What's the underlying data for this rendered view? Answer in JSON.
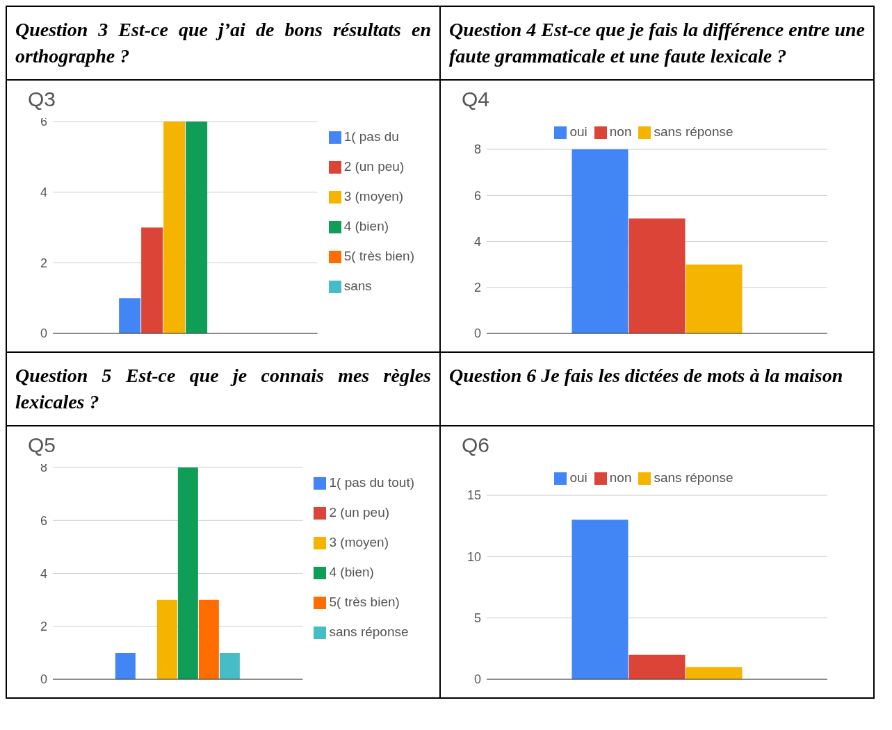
{
  "chart_data": [
    {
      "type": "bar",
      "title": "Question 3  Est-ce que j’ai de bons résultats en orthographe ?",
      "subtitle": "Q3",
      "categories": [
        null
      ],
      "ylim": [
        0,
        6
      ],
      "yticks": [
        0,
        2,
        4,
        6
      ],
      "grid": "y",
      "legend": "right",
      "series": [
        {
          "name": "1( pas du",
          "color": "#4285f4",
          "values": [
            1
          ]
        },
        {
          "name": "2 (un peu)",
          "color": "#db4437",
          "values": [
            3
          ]
        },
        {
          "name": "3 (moyen)",
          "color": "#f4b400",
          "values": [
            6
          ]
        },
        {
          "name": "4 (bien)",
          "color": "#0f9d58",
          "values": [
            6
          ]
        },
        {
          "name": "5( très bien)",
          "color": "#ff6d00",
          "values": [
            0
          ]
        },
        {
          "name": "sans",
          "color": "#46bdc6",
          "values": [
            0
          ]
        }
      ]
    },
    {
      "type": "bar",
      "title": "Question 4  Est-ce que je fais la différence entre une faute grammaticale et une faute lexicale ?",
      "subtitle": "Q4",
      "categories": [
        null
      ],
      "ylim": [
        0,
        8
      ],
      "yticks": [
        0,
        2,
        4,
        6,
        8
      ],
      "grid": "y",
      "legend": "top",
      "series": [
        {
          "name": "oui",
          "color": "#4285f4",
          "values": [
            8
          ]
        },
        {
          "name": "non",
          "color": "#db4437",
          "values": [
            5
          ]
        },
        {
          "name": "sans réponse",
          "color": "#f4b400",
          "values": [
            3
          ]
        }
      ]
    },
    {
      "type": "bar",
      "title": "Question 5  Est-ce que je connais mes règles lexicales ?",
      "subtitle": "Q5",
      "categories": [
        null
      ],
      "ylim": [
        0,
        8
      ],
      "yticks": [
        0,
        2,
        4,
        6,
        8
      ],
      "grid": "y",
      "legend": "right",
      "series": [
        {
          "name": "1( pas du tout)",
          "color": "#4285f4",
          "values": [
            1
          ]
        },
        {
          "name": "2 (un peu)",
          "color": "#db4437",
          "values": [
            0
          ]
        },
        {
          "name": "3 (moyen)",
          "color": "#f4b400",
          "values": [
            3
          ]
        },
        {
          "name": "4 (bien)",
          "color": "#0f9d58",
          "values": [
            8
          ]
        },
        {
          "name": "5( très bien)",
          "color": "#ff6d00",
          "values": [
            3
          ]
        },
        {
          "name": "sans réponse",
          "color": "#46bdc6",
          "values": [
            1
          ]
        }
      ]
    },
    {
      "type": "bar",
      "title": "Question 6  Je fais les dictées de mots à la maison",
      "subtitle": "Q6",
      "categories": [
        null
      ],
      "ylim": [
        0,
        15
      ],
      "yticks": [
        0,
        5,
        10,
        15
      ],
      "grid": "y",
      "legend": "top",
      "series": [
        {
          "name": "oui",
          "color": "#4285f4",
          "values": [
            13
          ]
        },
        {
          "name": "non",
          "color": "#db4437",
          "values": [
            2
          ]
        },
        {
          "name": "sans réponse",
          "color": "#f4b400",
          "values": [
            1
          ]
        }
      ]
    }
  ]
}
